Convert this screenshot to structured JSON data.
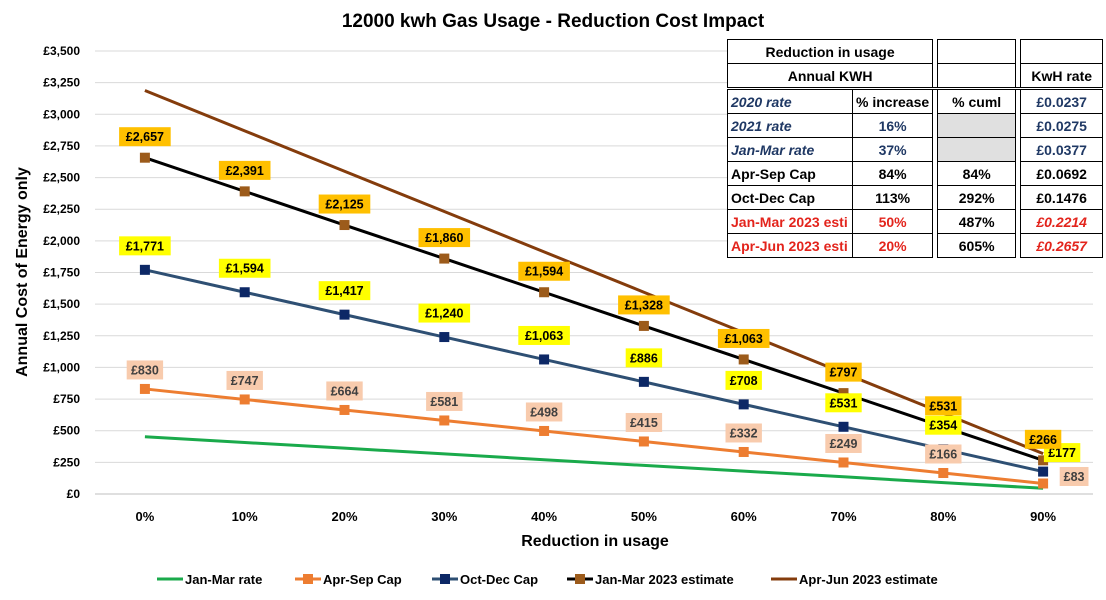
{
  "chart_data": {
    "type": "line",
    "title": "12000 kwh Gas Usage - Reduction Cost Impact",
    "xlabel": "Reduction in usage",
    "ylabel": "Annual Cost of Energy only",
    "categories": [
      "0%",
      "10%",
      "20%",
      "30%",
      "40%",
      "50%",
      "60%",
      "70%",
      "80%",
      "90%"
    ],
    "ylim": [
      0,
      3500
    ],
    "yticks": [
      0,
      250,
      500,
      750,
      1000,
      1250,
      1500,
      1750,
      2000,
      2250,
      2500,
      2750,
      3000,
      3250,
      3500
    ],
    "ytick_labels": [
      "£0",
      "£250",
      "£500",
      "£750",
      "£1,000",
      "£1,250",
      "£1,500",
      "£1,750",
      "£2,000",
      "£2,250",
      "£2,500",
      "£2,750",
      "£3,000",
      "£3,250",
      "£3,500"
    ],
    "grid": "horizontal",
    "legend_position": "bottom",
    "series": [
      {
        "name": "Jan-Mar rate",
        "color": "#1aaa4b",
        "marker": "none",
        "values": [
          452,
          407,
          362,
          317,
          271,
          226,
          181,
          136,
          90,
          45
        ],
        "labels": []
      },
      {
        "name": "Apr-Sep Cap",
        "color": "#ed7d31",
        "marker": "square",
        "label_bg": "#f8cbad",
        "label_color": "#404040",
        "values": [
          830,
          747,
          664,
          581,
          498,
          415,
          332,
          249,
          166,
          83
        ],
        "labels": [
          "£830",
          "£747",
          "£664",
          "£581",
          "£498",
          "£415",
          "£332",
          "£249",
          "£166",
          "£83"
        ]
      },
      {
        "name": "Oct-Dec Cap",
        "color": "#2e4f73",
        "marker": "square",
        "marker_color": "#0d2866",
        "label_bg": "#ffff00",
        "label_color": "#000000",
        "values": [
          1771,
          1594,
          1417,
          1240,
          1063,
          886,
          708,
          531,
          354,
          177
        ],
        "labels": [
          "£1,771",
          "£1,594",
          "£1,417",
          "£1,240",
          "£1,063",
          "£886",
          "£708",
          "£531",
          "£354",
          "£177"
        ]
      },
      {
        "name": "Jan-Mar 2023 estimate",
        "color": "#000000",
        "marker": "square",
        "marker_color": "#9c5b1b",
        "label_bg": "#ffc000",
        "label_color": "#000000",
        "values": [
          2657,
          2391,
          2125,
          1860,
          1594,
          1328,
          1063,
          797,
          531,
          266
        ],
        "labels": [
          "£2,657",
          "£2,391",
          "£2,125",
          "£1,860",
          "£1,594",
          "£1,328",
          "£1,063",
          "£797",
          "£531",
          "£266"
        ]
      },
      {
        "name": "Apr-Jun 2023 estimate",
        "color": "#843c0c",
        "marker": "none",
        "values": [
          3188,
          2869,
          2550,
          2232,
          1913,
          1594,
          1275,
          956,
          638,
          319
        ],
        "labels": []
      }
    ]
  },
  "table": {
    "header1": "Reduction in usage",
    "header2": "Annual KWH",
    "col_kwh": "KwH rate",
    "rows": [
      {
        "label": "2020  rate",
        "pct": "% increase",
        "cuml": "% cuml",
        "rate": "£0.0237"
      },
      {
        "label": "2021 rate",
        "pct": "16%",
        "cuml": "",
        "rate": "£0.0275"
      },
      {
        "label": "Jan-Mar rate",
        "pct": "37%",
        "cuml": "",
        "rate": "£0.0377"
      },
      {
        "label": "Apr-Sep Cap",
        "pct": "84%",
        "cuml": "84%",
        "rate": "£0.0692"
      },
      {
        "label": "Oct-Dec Cap",
        "pct": "113%",
        "cuml": "292%",
        "rate": "£0.1476"
      },
      {
        "label": "Jan-Mar 2023 esti",
        "pct": "50%",
        "cuml": "487%",
        "rate": "£0.2214"
      },
      {
        "label": "Apr-Jun 2023 esti",
        "pct": "20%",
        "cuml": "605%",
        "rate": "£0.2657"
      }
    ]
  }
}
